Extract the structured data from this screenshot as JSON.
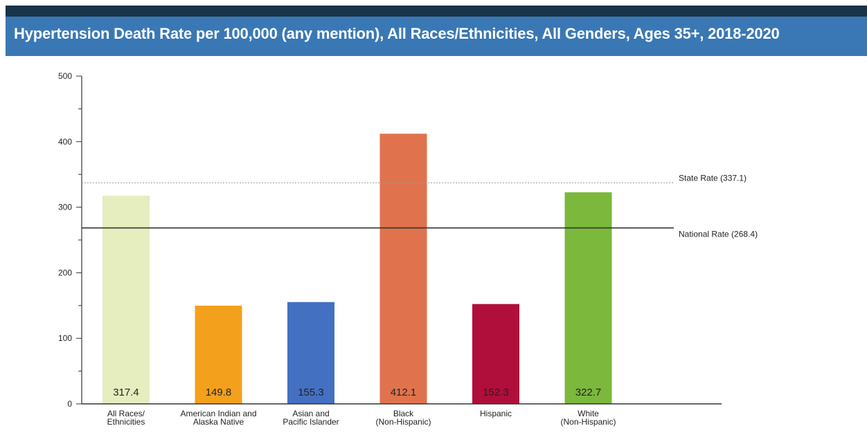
{
  "chart_data": {
    "type": "bar",
    "title": "Hypertension Death Rate per 100,000 (any mention), All Races/Ethnicities, All Genders, Ages 35+, 2018-2020",
    "categories": [
      [
        "All Races/",
        "Ethnicities"
      ],
      [
        "American Indian and",
        "Alaska Native"
      ],
      [
        "Asian and",
        "Pacific Islander"
      ],
      [
        "Black",
        "(Non-Hispanic)"
      ],
      [
        "Hispanic"
      ],
      [
        "White",
        "(Non-Hispanic)"
      ]
    ],
    "values": [
      317.4,
      149.8,
      155.3,
      412.1,
      152.3,
      322.7
    ],
    "value_labels": [
      "317.4",
      "149.8",
      "155.3",
      "412.1",
      "152.3",
      "322.7"
    ],
    "colors": [
      "#e6edbf",
      "#f3a11d",
      "#4470c2",
      "#e0734e",
      "#b00e3b",
      "#7bb83c"
    ],
    "ylim": [
      0,
      500
    ],
    "yticks": [
      0,
      100,
      200,
      300,
      400,
      500
    ],
    "xlabel": "",
    "ylabel": "",
    "grid": false,
    "reference_lines": [
      {
        "label": "State Rate (337.1)",
        "value": 337.1,
        "style": "dotted",
        "color": "#9a9a9a"
      },
      {
        "label": "National Rate (268.4)",
        "value": 268.4,
        "style": "solid",
        "color": "#333333"
      }
    ]
  }
}
